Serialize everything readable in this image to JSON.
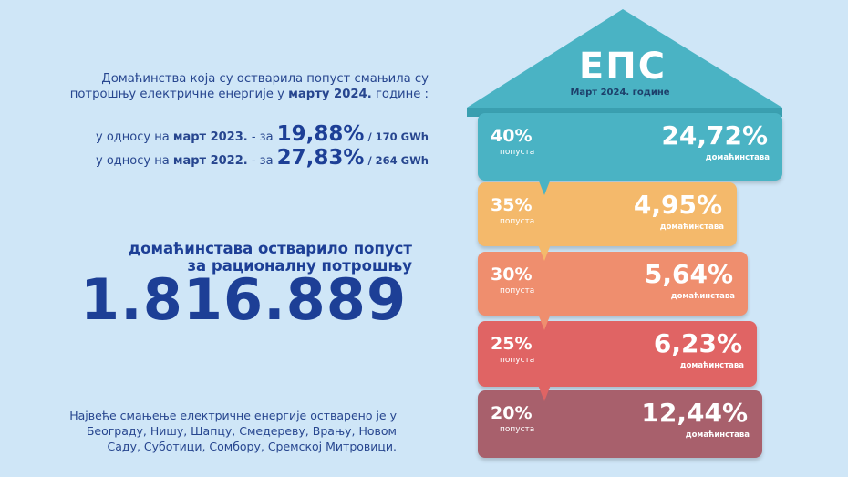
{
  "intro": {
    "line1": "Домаћинства која су остварила попуст смањила су",
    "line2_pre": "потрошњу електричне енергије у ",
    "line2_bold": "марту 2024.",
    "line2_post": " године :"
  },
  "comparisons": [
    {
      "pre": "у односу на ",
      "bold": "март 2023.",
      "mid": " - за ",
      "big": "19,88%",
      "sm": " / 170 GWh"
    },
    {
      "pre": "у односу на ",
      "bold": "март 2022.",
      "mid": " - за ",
      "big": "27,83%",
      "sm": " / 264 GWh"
    }
  ],
  "headline": {
    "line1": "домаћинстава остварило попуст",
    "line2": "за рационалну потрошњу",
    "number": "1.816.889"
  },
  "note": "Највеће смањење електричне енергије остварено је у Београду, Нишу, Шапцу, Смедереву, Врању, Новом Саду, Суботици, Сомбору, Сремској Митровици.",
  "roof": {
    "title": "ЕПС",
    "subtitle": "Март 2024. године",
    "color": "#4ab3c4"
  },
  "tiers": [
    {
      "discount": "40%",
      "discount_label": "попуста",
      "share": "24,72%",
      "share_label": "домаћинстава",
      "color": "#4ab3c4"
    },
    {
      "discount": "35%",
      "discount_label": "попуста",
      "share": "4,95%",
      "share_label": "домаћинстава",
      "color": "#f4b96b"
    },
    {
      "discount": "30%",
      "discount_label": "попуста",
      "share": "5,64%",
      "share_label": "домаћинстава",
      "color": "#ef8e6e"
    },
    {
      "discount": "25%",
      "discount_label": "попуста",
      "share": "6,23%",
      "share_label": "домаћинстава",
      "color": "#e06464"
    },
    {
      "discount": "20%",
      "discount_label": "попуста",
      "share": "12,44%",
      "share_label": "домаћинстава",
      "color": "#a8606c"
    }
  ]
}
